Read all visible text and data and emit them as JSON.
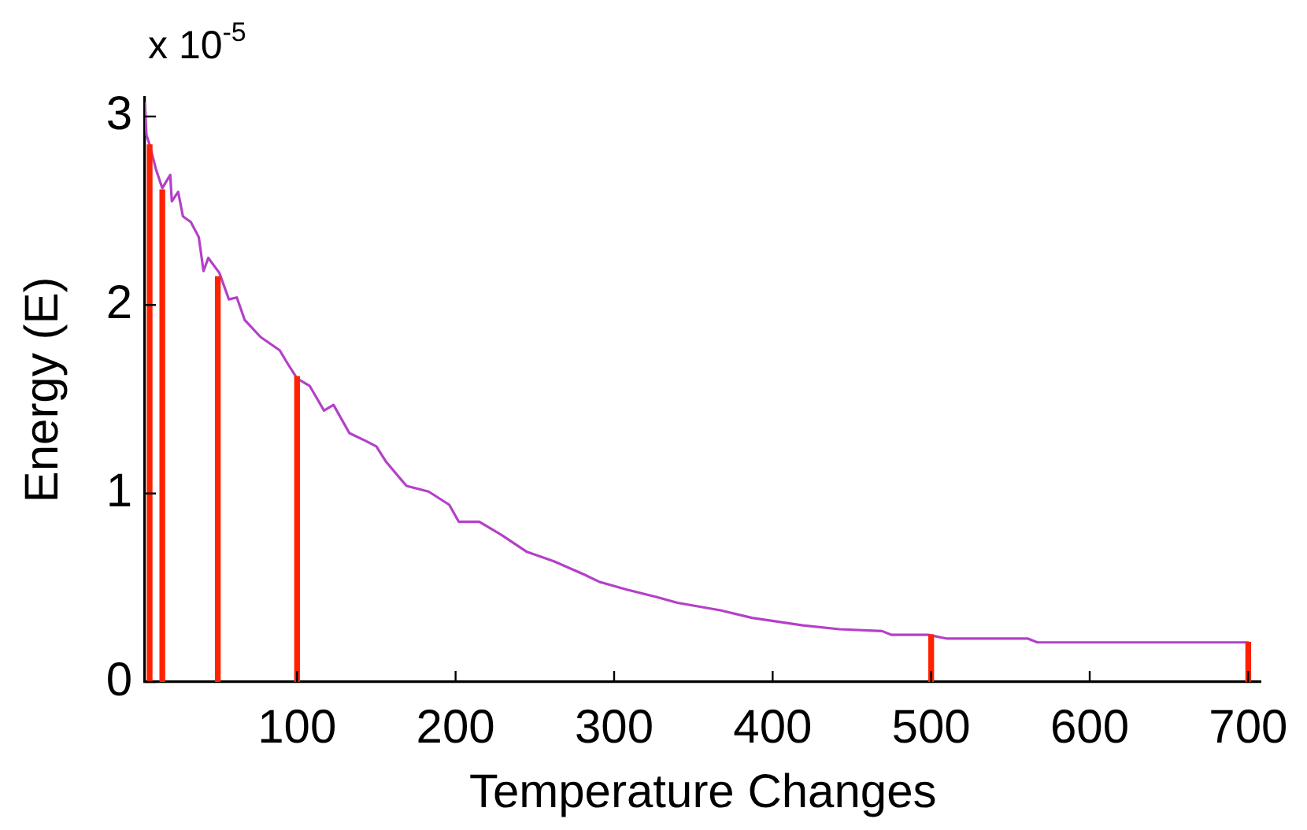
{
  "chart_data": {
    "type": "line",
    "xlabel": "Temperature Changes",
    "ylabel": "Energy (E)",
    "annotations": [
      "x 10$^{-5}$"
    ],
    "xlim": [
      4,
      708
    ],
    "ylim": [
      0,
      3.1
    ],
    "xticks": [
      100,
      200,
      300,
      400,
      500,
      600,
      700
    ],
    "yticks": [
      0,
      1,
      2,
      3
    ],
    "marker": "none",
    "series": [
      {
        "color": "#b440c8",
        "x": [
          4,
          5,
          7,
          11,
          15,
          20,
          21,
          25,
          28,
          33,
          38,
          41,
          44,
          51,
          57,
          62,
          67,
          77,
          89,
          94,
          100,
          108,
          117,
          123,
          133,
          143,
          150,
          156,
          169,
          183,
          196,
          202,
          215,
          229,
          245,
          262,
          281,
          291,
          308,
          327,
          340,
          367,
          387,
          403,
          419,
          442,
          469,
          475,
          498,
          510,
          561,
          567,
          574,
          700
        ],
        "values": [
          3.07,
          2.9,
          2.85,
          2.72,
          2.62,
          2.69,
          2.55,
          2.6,
          2.47,
          2.44,
          2.36,
          2.18,
          2.25,
          2.17,
          2.03,
          2.04,
          1.92,
          1.83,
          1.76,
          1.69,
          1.61,
          1.57,
          1.44,
          1.47,
          1.32,
          1.28,
          1.25,
          1.17,
          1.04,
          1.01,
          0.94,
          0.85,
          0.85,
          0.78,
          0.69,
          0.64,
          0.57,
          0.53,
          0.49,
          0.45,
          0.42,
          0.38,
          0.34,
          0.32,
          0.3,
          0.28,
          0.27,
          0.25,
          0.25,
          0.23,
          0.23,
          0.21,
          0.21,
          0.21
        ]
      },
      {
        "type": "bar",
        "color": "#ff2200",
        "x": [
          7,
          15,
          50,
          100,
          500,
          700
        ],
        "values": [
          2.85,
          2.61,
          2.15,
          1.62,
          0.25,
          0.21
        ]
      }
    ]
  }
}
